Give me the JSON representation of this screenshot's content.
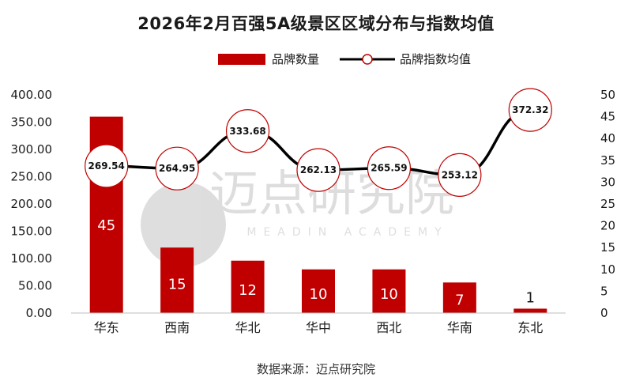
{
  "chart_data": {
    "type": "bar+line",
    "title": "2026年2月百强5A级景区区域分布与指数均值",
    "categories": [
      "华东",
      "西南",
      "华北",
      "华中",
      "西北",
      "华南",
      "东北"
    ],
    "series": [
      {
        "name": "品牌数量",
        "type": "bar",
        "axis": "right",
        "values": [
          45,
          15,
          12,
          10,
          10,
          7,
          1
        ]
      },
      {
        "name": "品牌指数均值",
        "type": "line",
        "axis": "left",
        "values": [
          269.54,
          264.95,
          333.68,
          262.13,
          265.59,
          253.12,
          372.32
        ]
      }
    ],
    "y_left": {
      "min": 0,
      "max": 400,
      "ticks": [
        "0.00",
        "50.00",
        "100.00",
        "150.00",
        "200.00",
        "250.00",
        "300.00",
        "350.00",
        "400.00"
      ]
    },
    "y_right": {
      "min": 0,
      "max": 50,
      "ticks": [
        "0",
        "5",
        "10",
        "15",
        "20",
        "25",
        "30",
        "35",
        "40",
        "45",
        "50"
      ]
    },
    "legend_position": "top-center",
    "grid": false,
    "colors": {
      "bar": "#C00000",
      "line": "#000000",
      "marker_edge": "#C00000"
    }
  },
  "watermark": {
    "text": "迈点研究院",
    "subtext": "MEADIN ACADEMY"
  },
  "source": "数据来源：迈点研究院"
}
